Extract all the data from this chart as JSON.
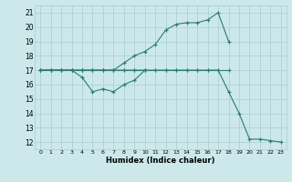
{
  "xlabel": "Humidex (Indice chaleur)",
  "xlim": [
    -0.5,
    23.5
  ],
  "ylim": [
    11.5,
    21.5
  ],
  "yticks": [
    12,
    13,
    14,
    15,
    16,
    17,
    18,
    19,
    20,
    21
  ],
  "xticks": [
    0,
    1,
    2,
    3,
    4,
    5,
    6,
    7,
    8,
    9,
    10,
    11,
    12,
    13,
    14,
    15,
    16,
    17,
    18,
    19,
    20,
    21,
    22,
    23
  ],
  "bg_color": "#cce8ea",
  "grid_color": "#aacdd0",
  "line_color": "#2d7a75",
  "lines": [
    {
      "x": [
        0,
        1,
        2,
        3,
        4,
        5,
        6,
        7,
        8,
        9,
        10,
        11,
        12,
        13,
        14,
        15,
        16,
        17,
        18
      ],
      "y": [
        17,
        17,
        17,
        17,
        17,
        17,
        17,
        17,
        17,
        17,
        17,
        17,
        17,
        17,
        17,
        17,
        17,
        17,
        17
      ]
    },
    {
      "x": [
        0,
        1,
        2,
        3,
        4,
        5,
        6,
        7,
        8,
        9,
        10
      ],
      "y": [
        17,
        17,
        17,
        17,
        16.5,
        15.5,
        15.7,
        15.5,
        16.0,
        16.3,
        17
      ]
    },
    {
      "x": [
        0,
        1,
        2,
        3,
        4,
        5,
        6,
        7,
        8,
        9,
        10,
        11,
        12,
        13,
        14,
        15,
        16,
        17,
        18,
        19,
        20,
        21,
        22,
        23
      ],
      "y": [
        17,
        17,
        17,
        17,
        17,
        17,
        17,
        17,
        17,
        17,
        17,
        17,
        17,
        17,
        17,
        17,
        17,
        17,
        15.5,
        14,
        12.2,
        12.2,
        12.1,
        12.0
      ]
    },
    {
      "x": [
        0,
        1,
        2,
        3,
        4,
        5,
        6,
        7,
        8,
        9,
        10,
        11,
        12,
        13,
        14,
        15,
        16,
        17,
        18
      ],
      "y": [
        17,
        17,
        17,
        17,
        17,
        17,
        17,
        17,
        17.5,
        18.0,
        18.3,
        18.8,
        19.8,
        20.2,
        20.3,
        20.3,
        20.5,
        21.0,
        19.0
      ]
    }
  ],
  "title_fontsize": 7,
  "tick_fontsize": 5.5
}
